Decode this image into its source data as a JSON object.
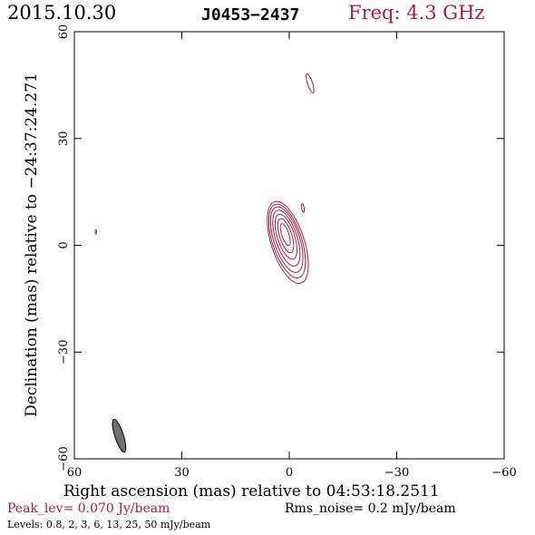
{
  "header": {
    "date": "2015.10.30",
    "source": "J0453−2437",
    "frequency": "Freq: 4.3 GHz"
  },
  "footer": {
    "peak": "Peak_lev=  0.070 Jy/beam",
    "rms": "Rms_noise=  0.2 mJy/beam",
    "levels": "Levels: 0.8,   2,   3,   6,  13,  25,  50 mJy/beam"
  },
  "colors": {
    "contour": "#a0204a",
    "beam": "#707070",
    "axis": "#000000"
  },
  "chart_data": {
    "type": "contour",
    "xlabel": "Right ascension (mas) relative to 04:53:18.2511",
    "ylabel": "Declination (mas) relative to −24:37:24.271",
    "xlim": [
      60,
      -60
    ],
    "ylim": [
      -60,
      60
    ],
    "xticks": [
      60,
      30,
      0,
      -30,
      -60
    ],
    "yticks": [
      -60,
      -30,
      0,
      30,
      60
    ],
    "xtick_labels": [
      "60",
      "30",
      "0",
      "−30",
      "−60"
    ],
    "ytick_labels": [
      "−60",
      "−30",
      "0",
      "30",
      "60"
    ],
    "peak_jy_per_beam": 0.07,
    "rms_mjy_per_beam": 0.2,
    "levels_mjy_per_beam": [
      0.8,
      2,
      3,
      6,
      13,
      25,
      50
    ],
    "contours": [
      {
        "level": 0.8,
        "cx": 0.4,
        "cy": 0.8,
        "a": 12.0,
        "b": 4.6,
        "pa": 18
      },
      {
        "level": 2,
        "cx": 0.6,
        "cy": 1.2,
        "a": 10.8,
        "b": 4.1,
        "pa": 18
      },
      {
        "level": 3,
        "cx": 0.7,
        "cy": 1.6,
        "a": 9.6,
        "b": 3.6,
        "pa": 18
      },
      {
        "level": 6,
        "cx": 0.8,
        "cy": 2.0,
        "a": 8.2,
        "b": 3.0,
        "pa": 18
      },
      {
        "level": 13,
        "cx": 0.9,
        "cy": 2.4,
        "a": 6.6,
        "b": 2.4,
        "pa": 18
      },
      {
        "level": 25,
        "cx": 1.0,
        "cy": 2.7,
        "a": 5.0,
        "b": 1.7,
        "pa": 18
      },
      {
        "level": 50,
        "cx": 1.1,
        "cy": 3.0,
        "a": 3.2,
        "b": 1.0,
        "pa": 18
      }
    ],
    "extra_contours": [
      {
        "level": 0.8,
        "cx": -5.8,
        "cy": 45.5,
        "a": 2.8,
        "b": 0.7,
        "pa": 18
      },
      {
        "level": 0.8,
        "cx": -3.8,
        "cy": 10.5,
        "a": 1.2,
        "b": 0.35,
        "pa": 10
      },
      {
        "level": 0.8,
        "cx": 54.0,
        "cy": 3.8,
        "a": 0.6,
        "b": 0.2,
        "pa": 0
      }
    ],
    "beam": {
      "cx": 47.5,
      "cy": -53.5,
      "a": 4.8,
      "b": 1.2,
      "pa": 18
    }
  }
}
